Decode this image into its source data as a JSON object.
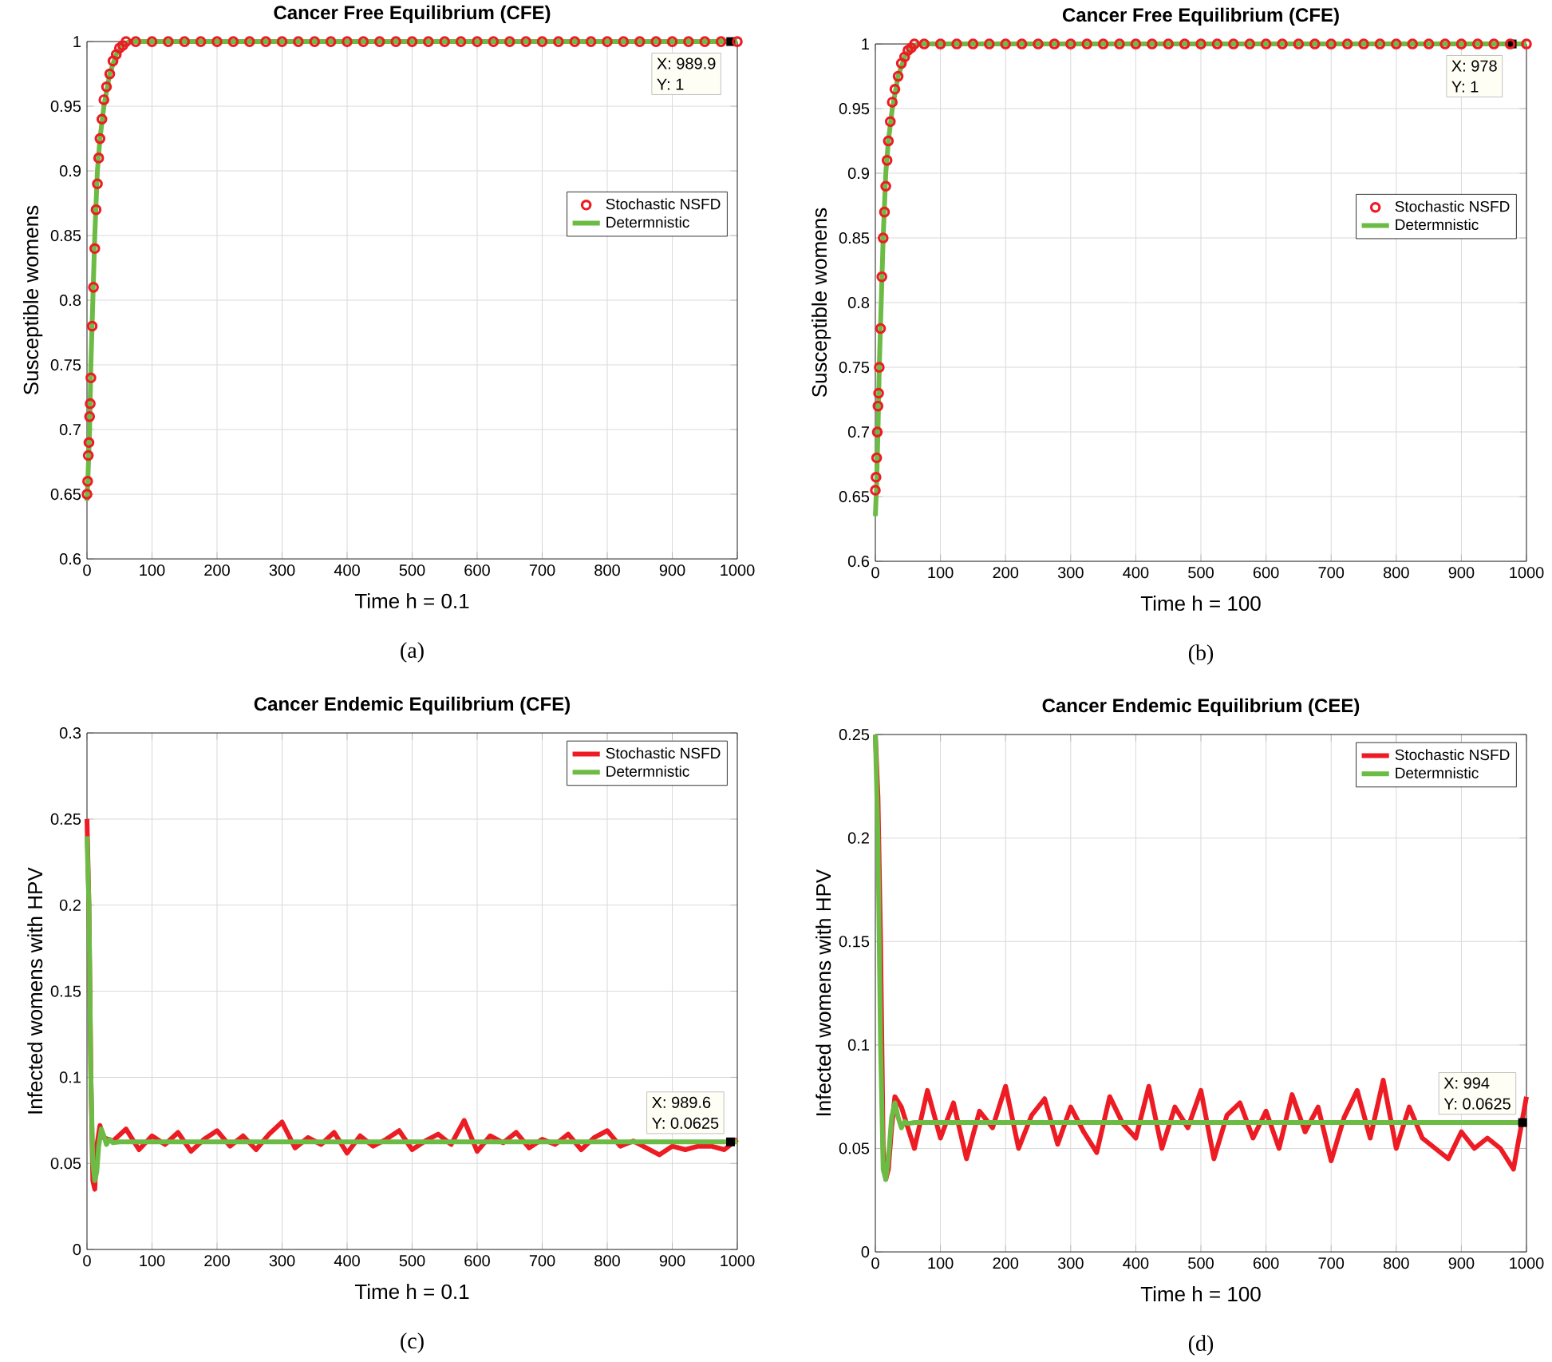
{
  "chart_data": [
    {
      "type": "line",
      "title": "Cancer Free Equilibrium (CFE)",
      "xlabel": "Time h = 0.1",
      "ylabel": "Susceptible womens",
      "xlim": [
        0,
        1000
      ],
      "ylim": [
        0.6,
        1
      ],
      "xticks": [
        0,
        100,
        200,
        300,
        400,
        500,
        600,
        700,
        800,
        900,
        1000
      ],
      "yticks": [
        0.6,
        0.65,
        0.7,
        0.75,
        0.8,
        0.85,
        0.9,
        0.95,
        1
      ],
      "grid": true,
      "legend": "top right",
      "annotations": [
        {
          "text": "X: 989.9",
          "x": 989.9,
          "y": 1
        },
        "Y: 1",
        "(a)"
      ],
      "series": [
        {
          "name": "Stochastic NSFD",
          "type": "scatter",
          "marker": "circle",
          "color": "#ed1c24",
          "x": [
            0,
            1,
            2,
            3,
            4,
            5,
            6,
            8,
            10,
            12,
            14,
            16,
            18,
            20,
            23,
            26,
            30,
            35,
            40,
            45,
            50,
            55,
            60,
            75,
            100,
            125,
            150,
            175,
            200,
            225,
            250,
            275,
            300,
            325,
            350,
            375,
            400,
            425,
            450,
            475,
            500,
            525,
            550,
            575,
            600,
            625,
            650,
            675,
            700,
            725,
            750,
            775,
            800,
            825,
            850,
            875,
            900,
            925,
            950,
            975,
            1000
          ],
          "values": [
            0.65,
            0.66,
            0.68,
            0.69,
            0.71,
            0.72,
            0.74,
            0.78,
            0.81,
            0.84,
            0.87,
            0.89,
            0.91,
            0.925,
            0.94,
            0.955,
            0.965,
            0.975,
            0.985,
            0.99,
            0.995,
            0.997,
            1,
            1,
            1,
            1,
            1,
            1,
            1,
            1,
            1,
            1,
            1,
            1,
            1,
            1,
            1,
            1,
            1,
            1,
            1,
            1,
            1,
            1,
            1,
            1,
            1,
            1,
            1,
            1,
            1,
            1,
            1,
            1,
            1,
            1,
            1,
            1,
            1,
            1,
            1
          ]
        },
        {
          "name": "Determnistic",
          "color": "#6cbb45",
          "x": [
            0,
            2,
            4,
            6,
            9,
            12,
            16,
            20,
            26,
            35,
            45,
            55,
            65,
            1000
          ],
          "values": [
            0.645,
            0.67,
            0.7,
            0.75,
            0.8,
            0.85,
            0.9,
            0.925,
            0.95,
            0.975,
            0.99,
            0.997,
            1,
            1
          ]
        }
      ]
    },
    {
      "type": "line",
      "title": "Cancer Free Equilibrium (CFE)",
      "xlabel": "Time h = 100",
      "ylabel": "Susceptible womens",
      "xlim": [
        0,
        1000
      ],
      "ylim": [
        0.6,
        1
      ],
      "xticks": [
        0,
        100,
        200,
        300,
        400,
        500,
        600,
        700,
        800,
        900,
        1000
      ],
      "yticks": [
        0.6,
        0.65,
        0.7,
        0.75,
        0.8,
        0.85,
        0.9,
        0.95,
        1
      ],
      "grid": true,
      "legend": "top right",
      "annotations": [
        {
          "text": "X: 978",
          "x": 978,
          "y": 1
        },
        "Y: 1",
        "(b)"
      ],
      "series": [
        {
          "name": "Stochastic NSFD",
          "type": "scatter",
          "marker": "circle",
          "color": "#ed1c24",
          "x": [
            0,
            1,
            2,
            3,
            4,
            5,
            6,
            8,
            10,
            12,
            14,
            16,
            18,
            20,
            23,
            26,
            30,
            35,
            40,
            45,
            50,
            55,
            60,
            75,
            100,
            125,
            150,
            175,
            200,
            225,
            250,
            275,
            300,
            325,
            350,
            375,
            400,
            425,
            450,
            475,
            500,
            525,
            550,
            575,
            600,
            625,
            650,
            675,
            700,
            725,
            750,
            775,
            800,
            825,
            850,
            875,
            900,
            925,
            950,
            975,
            1000
          ],
          "values": [
            0.655,
            0.665,
            0.68,
            0.7,
            0.72,
            0.73,
            0.75,
            0.78,
            0.82,
            0.85,
            0.87,
            0.89,
            0.91,
            0.925,
            0.94,
            0.955,
            0.965,
            0.975,
            0.985,
            0.99,
            0.995,
            0.997,
            1,
            1,
            1,
            1,
            1,
            1,
            1,
            1,
            1,
            1,
            1,
            1,
            1,
            1,
            1,
            1,
            1,
            1,
            1,
            1,
            1,
            1,
            1,
            1,
            1,
            1,
            1,
            1,
            1,
            1,
            1,
            1,
            1,
            1,
            1,
            1,
            1,
            1,
            1
          ]
        },
        {
          "name": "Determnistic",
          "color": "#6cbb45",
          "x": [
            0,
            2,
            4,
            6,
            9,
            12,
            16,
            20,
            26,
            35,
            45,
            55,
            65,
            1000
          ],
          "values": [
            0.635,
            0.66,
            0.7,
            0.75,
            0.8,
            0.85,
            0.9,
            0.925,
            0.95,
            0.975,
            0.99,
            0.997,
            1,
            1
          ]
        }
      ]
    },
    {
      "type": "line",
      "title": "Cancer Endemic Equilibrium (CFE)",
      "xlabel": "Time h = 0.1",
      "ylabel": "Infected womens with HPV",
      "xlim": [
        0,
        1000
      ],
      "ylim": [
        0,
        0.3
      ],
      "xticks": [
        0,
        100,
        200,
        300,
        400,
        500,
        600,
        700,
        800,
        900,
        1000
      ],
      "yticks": [
        0,
        0.05,
        0.1,
        0.15,
        0.2,
        0.25,
        0.3
      ],
      "grid": true,
      "legend": "top right",
      "annotations": [
        {
          "text": "X: 989.6",
          "x": 989.6,
          "y": 0.0625
        },
        "Y: 0.0625",
        "(c)"
      ],
      "series": [
        {
          "name": "Stochastic NSFD",
          "color": "#ed1c24",
          "x": [
            0,
            3,
            6,
            9,
            12,
            15,
            20,
            25,
            40,
            60,
            80,
            100,
            120,
            140,
            160,
            180,
            200,
            220,
            240,
            260,
            280,
            300,
            320,
            340,
            360,
            380,
            400,
            420,
            440,
            460,
            480,
            500,
            520,
            540,
            560,
            580,
            600,
            620,
            640,
            660,
            680,
            700,
            720,
            740,
            760,
            780,
            800,
            820,
            840,
            860,
            880,
            900,
            920,
            940,
            960,
            980,
            1000
          ],
          "values": [
            0.25,
            0.2,
            0.1,
            0.04,
            0.035,
            0.06,
            0.072,
            0.065,
            0.063,
            0.07,
            0.058,
            0.066,
            0.061,
            0.068,
            0.057,
            0.064,
            0.069,
            0.06,
            0.066,
            0.058,
            0.067,
            0.074,
            0.059,
            0.065,
            0.061,
            0.068,
            0.056,
            0.066,
            0.06,
            0.064,
            0.069,
            0.058,
            0.063,
            0.067,
            0.061,
            0.075,
            0.057,
            0.066,
            0.062,
            0.068,
            0.059,
            0.064,
            0.061,
            0.067,
            0.058,
            0.065,
            0.069,
            0.06,
            0.063,
            0.059,
            0.055,
            0.06,
            0.058,
            0.06,
            0.06,
            0.058,
            0.064
          ]
        },
        {
          "name": "Determnistic",
          "color": "#6cbb45",
          "x": [
            0,
            3,
            6,
            9,
            12,
            15,
            18,
            22,
            26,
            30,
            35,
            40,
            50,
            1000
          ],
          "values": [
            0.24,
            0.2,
            0.1,
            0.05,
            0.04,
            0.045,
            0.06,
            0.07,
            0.066,
            0.061,
            0.064,
            0.062,
            0.0625,
            0.0625
          ]
        }
      ]
    },
    {
      "type": "line",
      "title": "Cancer Endemic Equilibrium (CEE)",
      "xlabel": "Time h = 100",
      "ylabel": "Infected womens with HPV",
      "xlim": [
        0,
        1000
      ],
      "ylim": [
        0,
        0.25
      ],
      "xticks": [
        0,
        100,
        200,
        300,
        400,
        500,
        600,
        700,
        800,
        900,
        1000
      ],
      "yticks": [
        0,
        0.05,
        0.1,
        0.15,
        0.2,
        0.25
      ],
      "grid": true,
      "legend": "top right",
      "annotations": [
        {
          "text": "X: 994",
          "x": 994,
          "y": 0.0625
        },
        "Y: 0.0625",
        "(d)"
      ],
      "series": [
        {
          "name": "Stochastic NSFD",
          "color": "#ed1c24",
          "x": [
            0,
            4,
            8,
            12,
            16,
            20,
            25,
            30,
            40,
            60,
            80,
            100,
            120,
            140,
            160,
            180,
            200,
            220,
            240,
            260,
            280,
            300,
            320,
            340,
            360,
            380,
            400,
            420,
            440,
            460,
            480,
            500,
            520,
            540,
            560,
            580,
            600,
            620,
            640,
            660,
            680,
            700,
            720,
            740,
            760,
            780,
            800,
            820,
            840,
            860,
            880,
            900,
            920,
            940,
            960,
            980,
            1000
          ],
          "values": [
            0.25,
            0.22,
            0.15,
            0.05,
            0.035,
            0.04,
            0.06,
            0.075,
            0.07,
            0.05,
            0.078,
            0.055,
            0.072,
            0.045,
            0.068,
            0.06,
            0.08,
            0.05,
            0.066,
            0.074,
            0.052,
            0.07,
            0.058,
            0.048,
            0.075,
            0.062,
            0.055,
            0.08,
            0.05,
            0.07,
            0.06,
            0.078,
            0.045,
            0.066,
            0.072,
            0.055,
            0.068,
            0.05,
            0.076,
            0.058,
            0.07,
            0.044,
            0.065,
            0.078,
            0.055,
            0.083,
            0.05,
            0.07,
            0.055,
            0.05,
            0.045,
            0.058,
            0.05,
            0.055,
            0.05,
            0.04,
            0.075
          ]
        },
        {
          "name": "Determnistic",
          "color": "#6cbb45",
          "x": [
            0,
            4,
            8,
            12,
            16,
            20,
            25,
            30,
            35,
            40,
            45,
            50,
            60,
            1000
          ],
          "values": [
            0.25,
            0.2,
            0.1,
            0.04,
            0.035,
            0.045,
            0.065,
            0.072,
            0.065,
            0.06,
            0.063,
            0.062,
            0.0625,
            0.0625
          ]
        }
      ]
    }
  ]
}
